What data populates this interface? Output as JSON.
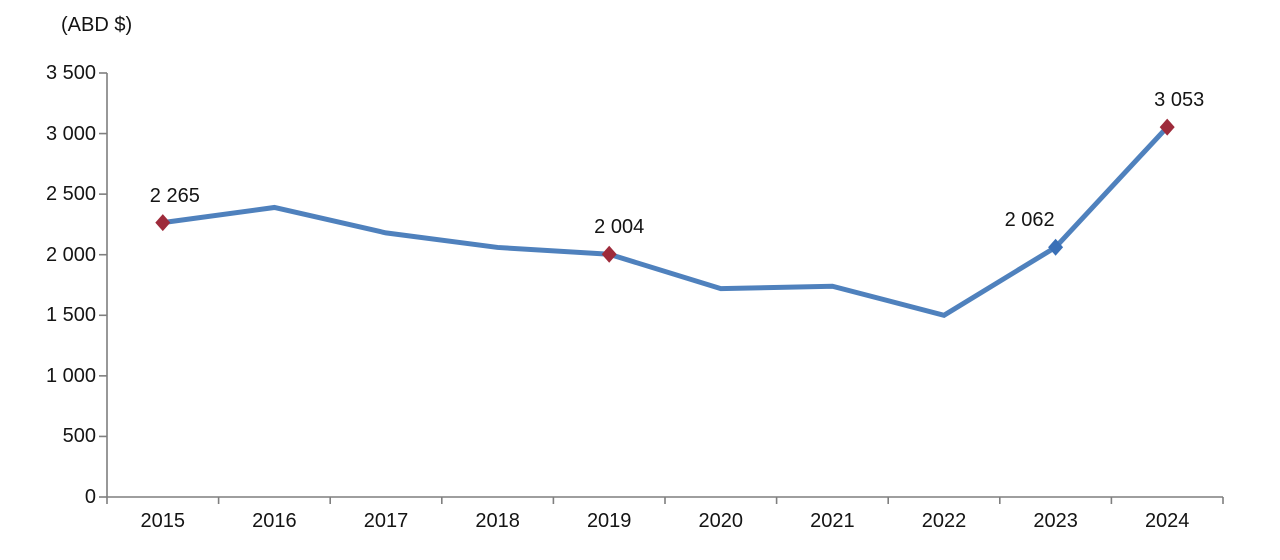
{
  "chart_data": {
    "type": "line",
    "title": "(ABD $)",
    "categories": [
      "2015",
      "2016",
      "2017",
      "2018",
      "2019",
      "2020",
      "2021",
      "2022",
      "2023",
      "2024"
    ],
    "values": [
      2265,
      2390,
      2180,
      2060,
      2004,
      1720,
      1740,
      1500,
      2062,
      3053
    ],
    "labeled_points": [
      {
        "category": "2015",
        "index": 0,
        "value": 2265,
        "label": "2 265",
        "marker": "diamond",
        "marker_color": "#9E2B3B"
      },
      {
        "category": "2019",
        "index": 4,
        "value": 2004,
        "label": "2 004",
        "marker": "diamond",
        "marker_color": "#9E2B3B"
      },
      {
        "category": "2023",
        "index": 8,
        "value": 2062,
        "label": "2 062",
        "marker": "diamond",
        "marker_color": "#3A70B7"
      },
      {
        "category": "2024",
        "index": 9,
        "value": 3053,
        "label": "3 053",
        "marker": "diamond",
        "marker_color": "#9E2B3B"
      }
    ],
    "xlabel": "",
    "ylabel": "",
    "ylim": [
      0,
      3500
    ],
    "ytick_values": [
      0,
      500,
      1000,
      1500,
      2000,
      2500,
      3000,
      3500
    ],
    "ytick_labels": [
      "0",
      "500",
      "1 000",
      "1 500",
      "2 000",
      "2 500",
      "3 000",
      "3 500"
    ],
    "grid": false,
    "legend": false,
    "colors": {
      "line": "#4F81BD",
      "axis": "#7F7F7F",
      "text": "#141414",
      "background": "#FFFFFF"
    }
  }
}
